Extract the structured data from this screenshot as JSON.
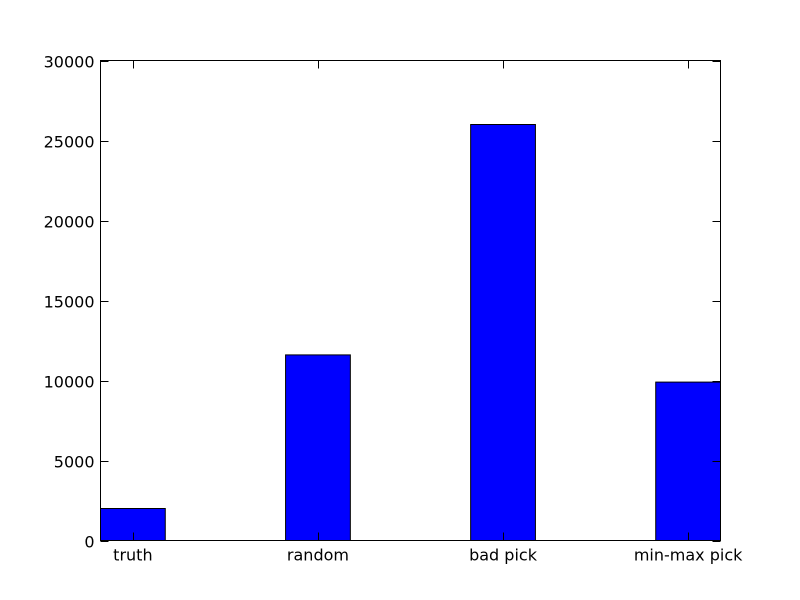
{
  "chart_data": {
    "type": "bar",
    "categories": [
      "truth",
      "random",
      "bad pick",
      "min-max pick"
    ],
    "values": [
      2000,
      11600,
      26000,
      9900
    ],
    "ylim": [
      0,
      30000
    ],
    "yticks": [
      0,
      5000,
      10000,
      15000,
      20000,
      25000,
      30000
    ],
    "ytick_labels": [
      "0",
      "5000",
      "10000",
      "15000",
      "20000",
      "25000",
      "30000"
    ],
    "bar_color": "#0000ff",
    "edge_color": "#000000",
    "grid": false,
    "legend": "none",
    "title": "",
    "xlabel": "",
    "ylabel": ""
  }
}
